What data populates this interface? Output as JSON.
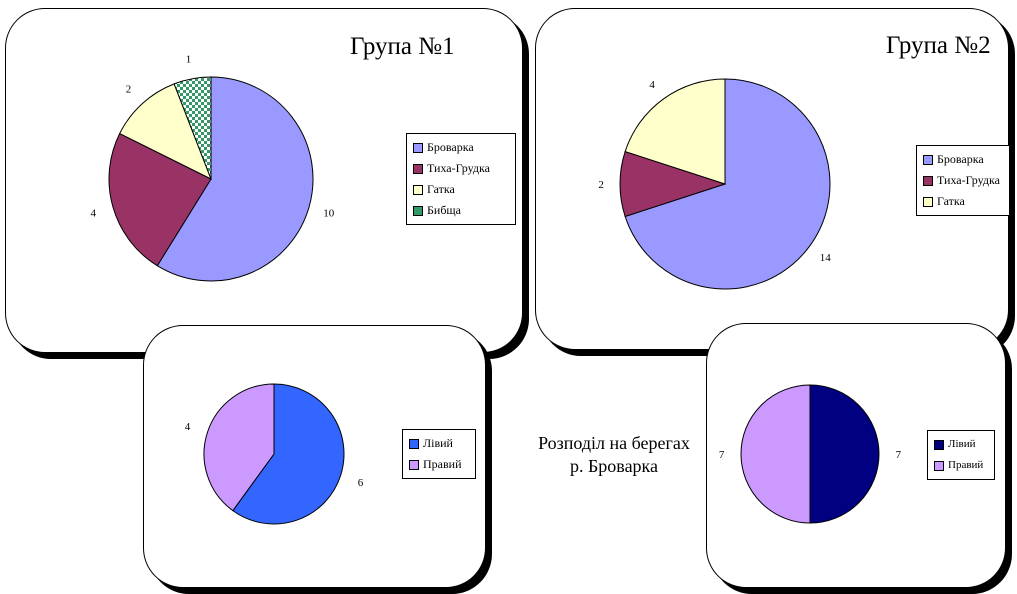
{
  "caption": {
    "line1": "Розподіл на берегах",
    "line2": "р. Броварка"
  },
  "colors": {
    "brovarka": "#9999ff",
    "tykha_grudka": "#993366",
    "gatka": "#ffffcc",
    "bybshcha": "#339966",
    "liviy_1": "#3366ff",
    "praviy": "#cc99ff",
    "liviy_2": "#000080"
  },
  "chart_data": [
    {
      "type": "pie",
      "title": "Група №1",
      "categories": [
        "Броварка",
        "Тиха-Грудка",
        "Гатка",
        "Бибща"
      ],
      "values": [
        10,
        4,
        2,
        1
      ],
      "legend_position": "right"
    },
    {
      "type": "pie",
      "title": "Група №2",
      "categories": [
        "Броварка",
        "Тиха-Грудка",
        "Гатка"
      ],
      "values": [
        14,
        2,
        4
      ],
      "legend_position": "right"
    },
    {
      "type": "pie",
      "title": "",
      "categories": [
        "Лівий",
        "Правий"
      ],
      "values": [
        6,
        4
      ],
      "legend_position": "right"
    },
    {
      "type": "pie",
      "title": "",
      "categories": [
        "Лівий",
        "Правий"
      ],
      "values": [
        7,
        7
      ],
      "legend_position": "right"
    }
  ]
}
